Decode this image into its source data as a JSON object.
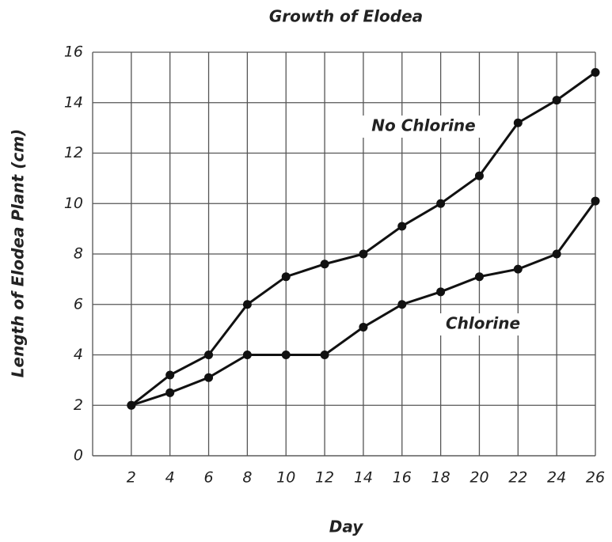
{
  "chart_data": {
    "type": "line",
    "title": "Growth of Elodea",
    "x_label": "Day",
    "y_label": "Length of Elodea Plant (cm)",
    "x": [
      2,
      4,
      6,
      8,
      10,
      12,
      14,
      16,
      18,
      20,
      22,
      24,
      26
    ],
    "series": [
      {
        "name": "No Chlorine",
        "color": "#111111",
        "values": [
          2,
          3.2,
          4,
          6,
          7.1,
          7.6,
          8,
          9.1,
          10,
          11.1,
          13.2,
          14.1,
          15.2
        ]
      },
      {
        "name": "Chlorine",
        "color": "#111111",
        "values": [
          2,
          2.5,
          3.1,
          4,
          4,
          4,
          5.1,
          6,
          6.5,
          7.1,
          7.4,
          8,
          10.1
        ]
      }
    ],
    "xlim": [
      0,
      26
    ],
    "xticks": [
      2,
      4,
      6,
      8,
      10,
      12,
      14,
      16,
      18,
      20,
      22,
      24,
      26
    ],
    "ylim": [
      0,
      16
    ],
    "yticks": [
      0,
      2,
      4,
      6,
      8,
      10,
      12,
      14,
      16
    ],
    "grid": true
  }
}
